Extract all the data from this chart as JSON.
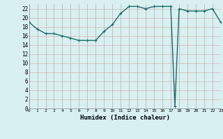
{
  "xlabel": "Humidex (Indice chaleur)",
  "x_values": [
    0,
    1,
    2,
    3,
    4,
    5,
    6,
    7,
    8,
    9,
    10,
    11,
    12,
    13,
    14,
    15,
    16,
    17,
    17.5,
    18,
    19,
    20,
    21,
    22,
    23
  ],
  "y_values": [
    19,
    17.5,
    16.5,
    16.5,
    16,
    15.5,
    15,
    15,
    15,
    17,
    18.5,
    21,
    22.5,
    22.5,
    22,
    22.5,
    22.5,
    22.5,
    0.5,
    22,
    21.5,
    21.5,
    21.5,
    22,
    19
  ],
  "line_color": "#1a6b6b",
  "marker": "+",
  "marker_size": 3,
  "xlim": [
    0,
    23
  ],
  "ylim": [
    0,
    23
  ],
  "yticks": [
    0,
    2,
    4,
    6,
    8,
    10,
    12,
    14,
    16,
    18,
    20,
    22
  ],
  "xticks": [
    0,
    1,
    2,
    3,
    4,
    5,
    6,
    7,
    8,
    9,
    10,
    11,
    12,
    13,
    14,
    15,
    16,
    17,
    18,
    19,
    20,
    21,
    22,
    23
  ],
  "bg_color": "#d8f0f0",
  "grid_color_v": "#d8b4b4",
  "grid_color_h": "#c8a8a8",
  "line_width": 1.0
}
